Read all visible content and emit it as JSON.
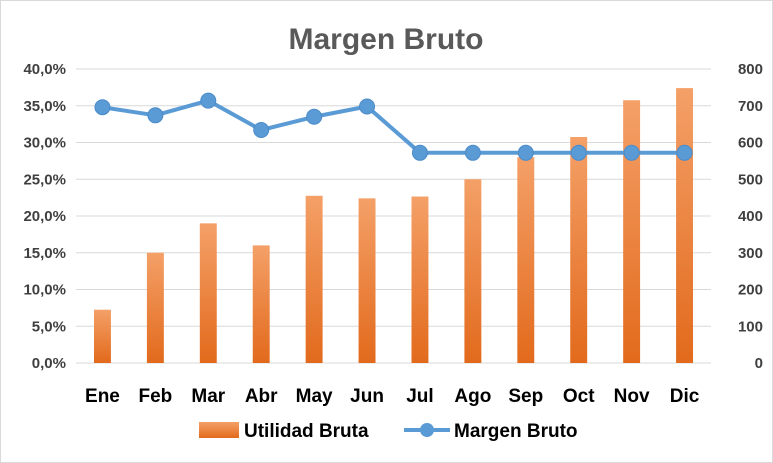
{
  "chart_data": {
    "type": "bar+line",
    "title": "Margen Bruto",
    "categories": [
      "Ene",
      "Feb",
      "Mar",
      "Abr",
      "May",
      "Jun",
      "Jul",
      "Ago",
      "Sep",
      "Oct",
      "Nov",
      "Dic"
    ],
    "series": [
      {
        "name": "Utilidad Bruta",
        "type": "bar",
        "axis": "right",
        "values": [
          145,
          300,
          380,
          320,
          455,
          448,
          453,
          500,
          560,
          615,
          715,
          748
        ],
        "color": "#ed7d31"
      },
      {
        "name": "Margen Bruto",
        "type": "line",
        "axis": "left",
        "values": [
          0.348,
          0.337,
          0.357,
          0.317,
          0.335,
          0.349,
          0.286,
          0.286,
          0.286,
          0.286,
          0.286,
          0.286
        ],
        "color": "#5b9bd5"
      }
    ],
    "y_left": {
      "min": 0,
      "max": 0.4,
      "step": 0.05,
      "tick_labels": [
        "0,0%",
        "5,0%",
        "10,0%",
        "15,0%",
        "20,0%",
        "25,0%",
        "30,0%",
        "35,0%",
        "40,0%"
      ]
    },
    "y_right": {
      "min": 0,
      "max": 800,
      "step": 100,
      "tick_labels": [
        "0",
        "100",
        "200",
        "300",
        "400",
        "500",
        "600",
        "700",
        "800"
      ]
    },
    "grid": true,
    "legend_position": "bottom"
  }
}
